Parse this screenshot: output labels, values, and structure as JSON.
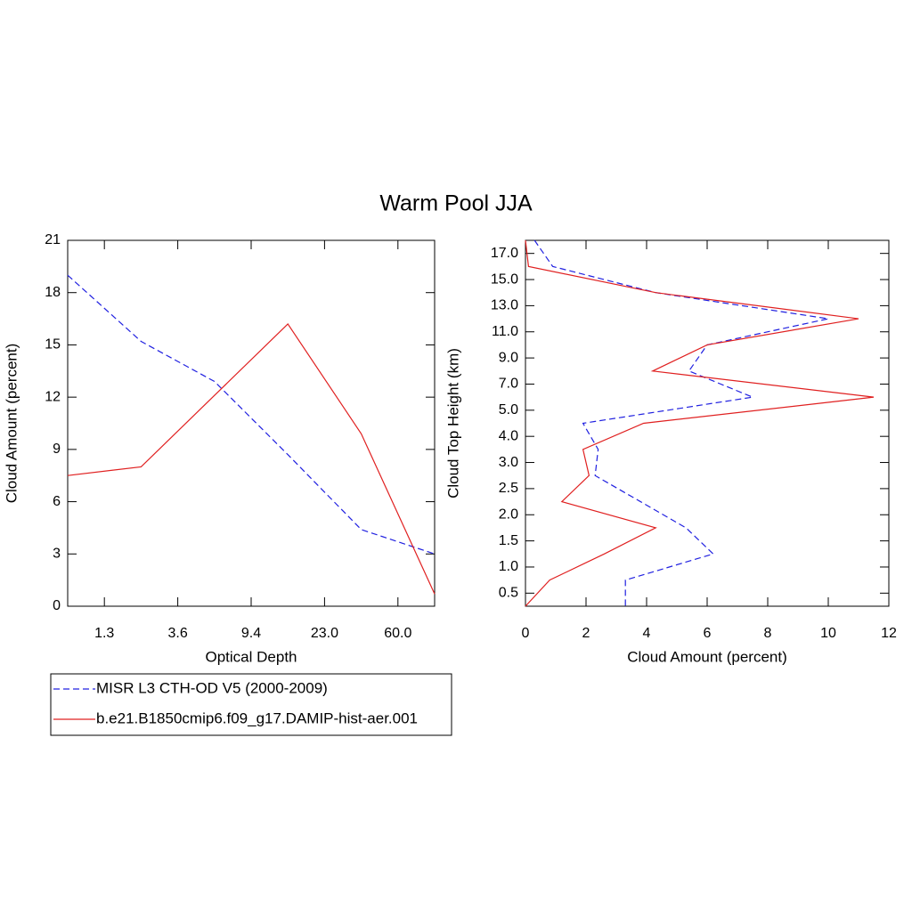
{
  "title": "Warm Pool JJA",
  "chart_data": [
    {
      "type": "line",
      "xlabel": "Optical Depth",
      "ylabel": "Cloud Amount (percent)",
      "x": [
        0,
        1,
        2,
        3,
        4,
        5
      ],
      "xlim": [
        0,
        5
      ],
      "xticks": [
        {
          "value": 0.5,
          "label": "1.3"
        },
        {
          "value": 1.5,
          "label": "3.6"
        },
        {
          "value": 2.5,
          "label": "9.4"
        },
        {
          "value": 3.5,
          "label": "23.0"
        },
        {
          "value": 4.5,
          "label": "60.0"
        }
      ],
      "ylim": [
        0,
        21
      ],
      "yticks": [
        0,
        3,
        6,
        9,
        12,
        15,
        18,
        21
      ],
      "series": [
        {
          "name": "MISR L3 CTH-OD V5 (2000-2009)",
          "color": "#2020e0",
          "dashed": true,
          "values": [
            19.0,
            15.2,
            12.9,
            8.7,
            4.4,
            3.0
          ]
        },
        {
          "name": "b.e21.B1850cmip6.f09_g17.DAMIP-hist-aer.001",
          "color": "#e02020",
          "dashed": false,
          "values": [
            7.5,
            8.0,
            12.1,
            16.2,
            9.9,
            0.7
          ]
        }
      ]
    },
    {
      "type": "line",
      "xlabel": "Cloud Amount (percent)",
      "ylabel": "Cloud Top Height (km)",
      "xlim": [
        0,
        12
      ],
      "xticks": [
        0,
        2,
        4,
        6,
        8,
        10,
        12
      ],
      "ylim": [
        -0.5,
        13.5
      ],
      "yticks": [
        {
          "value": 0,
          "label": "0.5"
        },
        {
          "value": 1,
          "label": "1.0"
        },
        {
          "value": 2,
          "label": "1.5"
        },
        {
          "value": 3,
          "label": "2.0"
        },
        {
          "value": 4,
          "label": "2.5"
        },
        {
          "value": 5,
          "label": "3.0"
        },
        {
          "value": 6,
          "label": "4.0"
        },
        {
          "value": 7,
          "label": "5.0"
        },
        {
          "value": 8,
          "label": "7.0"
        },
        {
          "value": 9,
          "label": "9.0"
        },
        {
          "value": 10,
          "label": "11.0"
        },
        {
          "value": 11,
          "label": "13.0"
        },
        {
          "value": 12,
          "label": "15.0"
        },
        {
          "value": 13,
          "label": "17.0"
        }
      ],
      "series": [
        {
          "color": "#2020e0",
          "dashed": true,
          "y": [
            13.5,
            12.5,
            11.5,
            10.5,
            9.5,
            8.5,
            7.5,
            6.5,
            5.5,
            4.5,
            3.5,
            2.5,
            1.5,
            0.5,
            -0.5
          ],
          "values": [
            0.3,
            0.9,
            4.3,
            10.0,
            6.0,
            5.4,
            7.5,
            1.9,
            2.4,
            2.3,
            3.8,
            5.3,
            6.2,
            3.3,
            3.3
          ]
        },
        {
          "color": "#e02020",
          "dashed": false,
          "y": [
            13.5,
            12.5,
            11.5,
            10.5,
            9.5,
            8.5,
            7.5,
            6.5,
            5.5,
            4.5,
            3.5,
            2.5,
            1.5,
            0.5,
            -0.5
          ],
          "values": [
            0.0,
            0.1,
            4.3,
            11.0,
            6.0,
            4.2,
            11.5,
            3.9,
            1.9,
            2.1,
            1.2,
            4.3,
            2.6,
            0.8,
            0.0
          ]
        }
      ]
    }
  ]
}
